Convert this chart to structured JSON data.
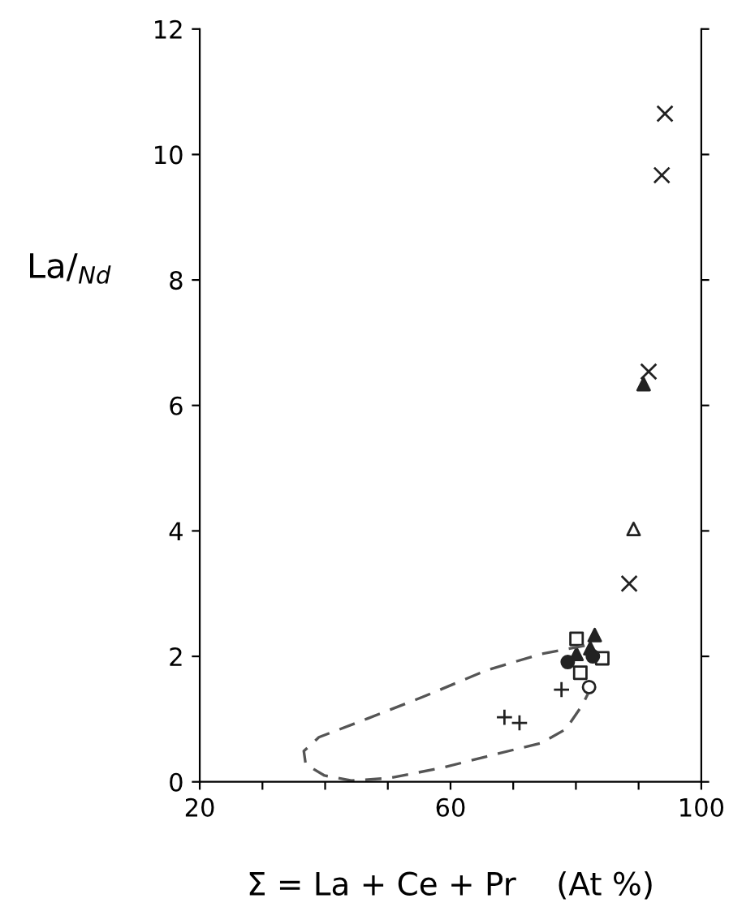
{
  "chart_data": {
    "type": "scatter",
    "xlabel": "Σ = La + Ce + Pr    (At %)",
    "ylabel": "La/$_{Nd}$",
    "xlim": [
      20,
      100
    ],
    "ylim": [
      0,
      12
    ],
    "xticks": [
      20,
      {
        "value": 30,
        "label": null
      },
      {
        "value": 40,
        "label": null
      },
      {
        "value": 50,
        "label": null
      },
      60,
      {
        "value": 70,
        "label": null
      },
      {
        "value": 80,
        "label": null
      },
      {
        "value": 90,
        "label": null
      },
      100
    ],
    "yticks": [
      0,
      2,
      4,
      6,
      8,
      10,
      12
    ],
    "grid": false,
    "legend": false,
    "series": [
      {
        "type": "line",
        "line_style": "dashed",
        "marker": "none",
        "color": "#555555",
        "x": [
          81.4,
          74.5,
          65.8,
          55.5,
          46.8,
          39.0,
          36.6,
          36.9,
          39.9,
          44.2,
          50.3,
          58.9,
          67.6,
          74.5,
          78.4,
          81.0,
          81.9
        ],
        "values": [
          2.17,
          2.04,
          1.78,
          1.35,
          1.01,
          0.71,
          0.49,
          0.28,
          0.1,
          0.02,
          0.06,
          0.23,
          0.45,
          0.62,
          0.84,
          1.22,
          1.4
        ]
      },
      {
        "marker": "cross",
        "color": "#222222",
        "x": [
          94.2,
          93.7,
          91.6,
          88.5
        ],
        "values": [
          10.65,
          9.67,
          6.54,
          3.16
        ]
      },
      {
        "marker": "triangle",
        "color": "#222222",
        "x": [
          90.8,
          83.0,
          82.3,
          80.1
        ],
        "values": [
          6.34,
          2.34,
          2.13,
          2.04
        ]
      },
      {
        "marker": "triangle-open",
        "color": "#222222",
        "x": [
          89.2
        ],
        "values": [
          4.03
        ]
      },
      {
        "marker": "plus",
        "color": "#222222",
        "x": [
          68.6,
          71.0,
          77.7
        ],
        "values": [
          1.03,
          0.94,
          1.47
        ]
      },
      {
        "marker": "circle-open",
        "color": "#222222",
        "x": [
          82.1
        ],
        "values": [
          1.51
        ]
      },
      {
        "marker": "square-open",
        "color": "#222222",
        "x": [
          80.1,
          80.7,
          84.2
        ],
        "values": [
          2.28,
          1.74,
          1.97
        ]
      },
      {
        "marker": "circle",
        "color": "#222222",
        "x": [
          78.7,
          82.7
        ],
        "values": [
          1.91,
          2.0
        ]
      }
    ]
  }
}
